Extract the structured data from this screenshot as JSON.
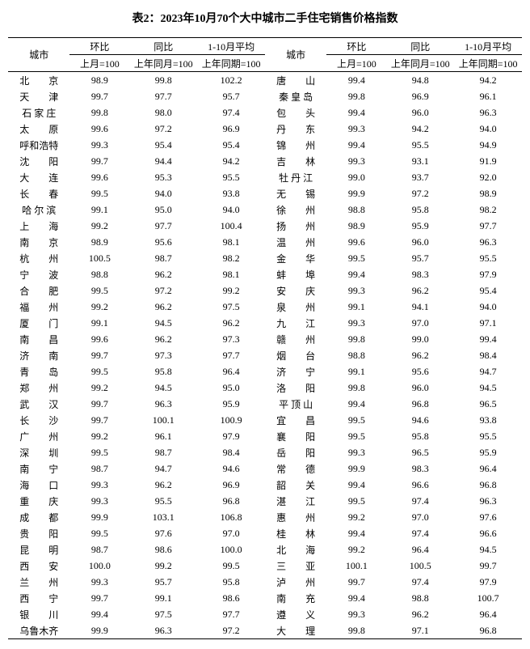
{
  "title": "表2：2023年10月70个大中城市二手住宅销售价格指数",
  "headers": {
    "city": "城市",
    "mom": "环比",
    "yoy": "同比",
    "avg": "1-10月平均",
    "mom_sub": "上月=100",
    "yoy_sub": "上年同月=100",
    "avg_sub": "上年同期=100"
  },
  "left": [
    {
      "city": "北　　京",
      "mom": "98.9",
      "yoy": "99.8",
      "avg": "102.2"
    },
    {
      "city": "天　　津",
      "mom": "99.7",
      "yoy": "97.7",
      "avg": "95.7"
    },
    {
      "city": "石 家 庄",
      "mom": "99.8",
      "yoy": "98.0",
      "avg": "97.4"
    },
    {
      "city": "太　　原",
      "mom": "99.6",
      "yoy": "97.2",
      "avg": "96.9"
    },
    {
      "city": "呼和浩特",
      "mom": "99.3",
      "yoy": "95.4",
      "avg": "95.4"
    },
    {
      "city": "沈　　阳",
      "mom": "99.7",
      "yoy": "94.4",
      "avg": "94.2"
    },
    {
      "city": "大　　连",
      "mom": "99.6",
      "yoy": "95.3",
      "avg": "95.5"
    },
    {
      "city": "长　　春",
      "mom": "99.5",
      "yoy": "94.0",
      "avg": "93.8"
    },
    {
      "city": "哈 尔 滨",
      "mom": "99.1",
      "yoy": "95.0",
      "avg": "94.0"
    },
    {
      "city": "上　　海",
      "mom": "99.2",
      "yoy": "97.7",
      "avg": "100.4"
    },
    {
      "city": "南　　京",
      "mom": "98.9",
      "yoy": "95.6",
      "avg": "98.1"
    },
    {
      "city": "杭　　州",
      "mom": "100.5",
      "yoy": "98.7",
      "avg": "98.2"
    },
    {
      "city": "宁　　波",
      "mom": "98.8",
      "yoy": "96.2",
      "avg": "98.1"
    },
    {
      "city": "合　　肥",
      "mom": "99.5",
      "yoy": "97.2",
      "avg": "99.2"
    },
    {
      "city": "福　　州",
      "mom": "99.2",
      "yoy": "96.2",
      "avg": "97.5"
    },
    {
      "city": "厦　　门",
      "mom": "99.1",
      "yoy": "94.5",
      "avg": "96.2"
    },
    {
      "city": "南　　昌",
      "mom": "99.6",
      "yoy": "96.2",
      "avg": "97.3"
    },
    {
      "city": "济　　南",
      "mom": "99.7",
      "yoy": "97.3",
      "avg": "97.7"
    },
    {
      "city": "青　　岛",
      "mom": "99.5",
      "yoy": "95.8",
      "avg": "96.4"
    },
    {
      "city": "郑　　州",
      "mom": "99.2",
      "yoy": "94.5",
      "avg": "95.0"
    },
    {
      "city": "武　　汉",
      "mom": "99.7",
      "yoy": "96.3",
      "avg": "95.9"
    },
    {
      "city": "长　　沙",
      "mom": "99.7",
      "yoy": "100.1",
      "avg": "100.9"
    },
    {
      "city": "广　　州",
      "mom": "99.2",
      "yoy": "96.1",
      "avg": "97.9"
    },
    {
      "city": "深　　圳",
      "mom": "99.5",
      "yoy": "98.7",
      "avg": "98.4"
    },
    {
      "city": "南　　宁",
      "mom": "98.7",
      "yoy": "94.7",
      "avg": "94.6"
    },
    {
      "city": "海　　口",
      "mom": "99.3",
      "yoy": "96.2",
      "avg": "96.9"
    },
    {
      "city": "重　　庆",
      "mom": "99.3",
      "yoy": "95.5",
      "avg": "96.8"
    },
    {
      "city": "成　　都",
      "mom": "99.9",
      "yoy": "103.1",
      "avg": "106.8"
    },
    {
      "city": "贵　　阳",
      "mom": "99.5",
      "yoy": "97.6",
      "avg": "97.0"
    },
    {
      "city": "昆　　明",
      "mom": "98.7",
      "yoy": "98.6",
      "avg": "100.0"
    },
    {
      "city": "西　　安",
      "mom": "100.0",
      "yoy": "99.2",
      "avg": "99.5"
    },
    {
      "city": "兰　　州",
      "mom": "99.3",
      "yoy": "95.7",
      "avg": "95.8"
    },
    {
      "city": "西　　宁",
      "mom": "99.7",
      "yoy": "99.1",
      "avg": "98.6"
    },
    {
      "city": "银　　川",
      "mom": "99.4",
      "yoy": "97.5",
      "avg": "97.7"
    },
    {
      "city": "乌鲁木齐",
      "mom": "99.9",
      "yoy": "96.3",
      "avg": "97.2"
    }
  ],
  "right": [
    {
      "city": "唐　　山",
      "mom": "99.4",
      "yoy": "94.8",
      "avg": "94.2"
    },
    {
      "city": "秦 皇 岛",
      "mom": "99.8",
      "yoy": "96.9",
      "avg": "96.1"
    },
    {
      "city": "包　　头",
      "mom": "99.4",
      "yoy": "96.0",
      "avg": "96.3"
    },
    {
      "city": "丹　　东",
      "mom": "99.3",
      "yoy": "94.2",
      "avg": "94.0"
    },
    {
      "city": "锦　　州",
      "mom": "99.4",
      "yoy": "95.5",
      "avg": "94.9"
    },
    {
      "city": "吉　　林",
      "mom": "99.3",
      "yoy": "93.1",
      "avg": "91.9"
    },
    {
      "city": "牡 丹 江",
      "mom": "99.0",
      "yoy": "93.7",
      "avg": "92.0"
    },
    {
      "city": "无　　锡",
      "mom": "99.9",
      "yoy": "97.2",
      "avg": "98.9"
    },
    {
      "city": "徐　　州",
      "mom": "98.8",
      "yoy": "95.8",
      "avg": "98.2"
    },
    {
      "city": "扬　　州",
      "mom": "98.9",
      "yoy": "95.9",
      "avg": "97.7"
    },
    {
      "city": "温　　州",
      "mom": "99.6",
      "yoy": "96.0",
      "avg": "96.3"
    },
    {
      "city": "金　　华",
      "mom": "99.5",
      "yoy": "95.7",
      "avg": "95.5"
    },
    {
      "city": "蚌　　埠",
      "mom": "99.4",
      "yoy": "98.3",
      "avg": "97.9"
    },
    {
      "city": "安　　庆",
      "mom": "99.3",
      "yoy": "96.2",
      "avg": "95.4"
    },
    {
      "city": "泉　　州",
      "mom": "99.1",
      "yoy": "94.1",
      "avg": "94.0"
    },
    {
      "city": "九　　江",
      "mom": "99.3",
      "yoy": "97.0",
      "avg": "97.1"
    },
    {
      "city": "赣　　州",
      "mom": "99.8",
      "yoy": "99.0",
      "avg": "99.4"
    },
    {
      "city": "烟　　台",
      "mom": "98.8",
      "yoy": "96.2",
      "avg": "98.4"
    },
    {
      "city": "济　　宁",
      "mom": "99.1",
      "yoy": "95.6",
      "avg": "94.7"
    },
    {
      "city": "洛　　阳",
      "mom": "99.8",
      "yoy": "96.0",
      "avg": "94.5"
    },
    {
      "city": "平 顶 山",
      "mom": "99.4",
      "yoy": "96.8",
      "avg": "96.5"
    },
    {
      "city": "宜　　昌",
      "mom": "99.5",
      "yoy": "94.6",
      "avg": "93.8"
    },
    {
      "city": "襄　　阳",
      "mom": "99.5",
      "yoy": "95.8",
      "avg": "95.5"
    },
    {
      "city": "岳　　阳",
      "mom": "99.3",
      "yoy": "96.5",
      "avg": "95.9"
    },
    {
      "city": "常　　德",
      "mom": "99.9",
      "yoy": "98.3",
      "avg": "96.4"
    },
    {
      "city": "韶　　关",
      "mom": "99.4",
      "yoy": "96.6",
      "avg": "96.8"
    },
    {
      "city": "湛　　江",
      "mom": "99.5",
      "yoy": "97.4",
      "avg": "96.3"
    },
    {
      "city": "惠　　州",
      "mom": "99.2",
      "yoy": "97.0",
      "avg": "97.6"
    },
    {
      "city": "桂　　林",
      "mom": "99.4",
      "yoy": "97.4",
      "avg": "96.6"
    },
    {
      "city": "北　　海",
      "mom": "99.2",
      "yoy": "96.4",
      "avg": "94.5"
    },
    {
      "city": "三　　亚",
      "mom": "100.1",
      "yoy": "100.5",
      "avg": "99.7"
    },
    {
      "city": "泸　　州",
      "mom": "99.7",
      "yoy": "97.4",
      "avg": "97.9"
    },
    {
      "city": "南　　充",
      "mom": "99.4",
      "yoy": "98.8",
      "avg": "100.7"
    },
    {
      "city": "遵　　义",
      "mom": "99.3",
      "yoy": "96.2",
      "avg": "96.4"
    },
    {
      "city": "大　　理",
      "mom": "99.8",
      "yoy": "97.1",
      "avg": "96.8"
    }
  ]
}
